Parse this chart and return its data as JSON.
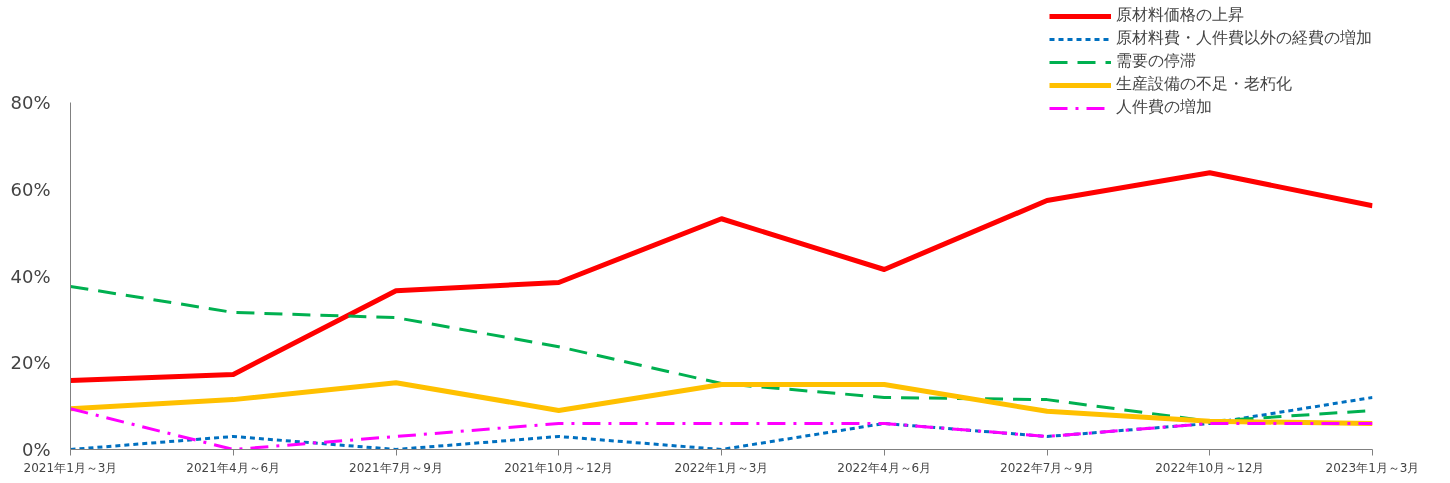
{
  "chart_data": {
    "type": "line",
    "categories": [
      "2021年1月～3月",
      "2021年4月～6月",
      "2021年7月～9月",
      "2021年10月～12月",
      "2022年1月～3月",
      "2022年4月～6月",
      "2022年7月～9月",
      "2022年10月～12月",
      "2023年1月～3月"
    ],
    "series": [
      {
        "name": "原材料価格の上昇",
        "color": "#ff0000",
        "line_style": "solid",
        "values": [
          15.9,
          17.3,
          36.6,
          38.5,
          53.2,
          41.5,
          57.4,
          63.8,
          56.2
        ]
      },
      {
        "name": "原材料費・人件費以外の経費の増加",
        "color": "#0070c0",
        "line_style": "dotted",
        "values": [
          0,
          3,
          0,
          3,
          0,
          6,
          3,
          6,
          12
        ]
      },
      {
        "name": "需要の停滞",
        "color": "#00b050",
        "line_style": "dashed",
        "values": [
          37.6,
          31.6,
          30.4,
          23.7,
          15.2,
          12,
          11.5,
          6.5,
          9
        ]
      },
      {
        "name": "生産設備の不足・老朽化",
        "color": "#ffc000",
        "line_style": "solid",
        "values": [
          9.4,
          11.5,
          15.4,
          9,
          15,
          15,
          8.8,
          6.5,
          6
        ]
      },
      {
        "name": "人件費の増加",
        "color": "#ff00ff",
        "line_style": "dashdot",
        "values": [
          9.4,
          0,
          3,
          6,
          6,
          6,
          3,
          6,
          6
        ]
      }
    ],
    "ylim": [
      0,
      80
    ],
    "yticks": [
      {
        "value": 0,
        "label": "0%"
      },
      {
        "value": 20,
        "label": "20%"
      },
      {
        "value": 40,
        "label": "40%"
      },
      {
        "value": 60,
        "label": "60%"
      },
      {
        "value": 80,
        "label": "80%"
      }
    ],
    "grid": false,
    "legend": "top right",
    "marker": "none"
  }
}
